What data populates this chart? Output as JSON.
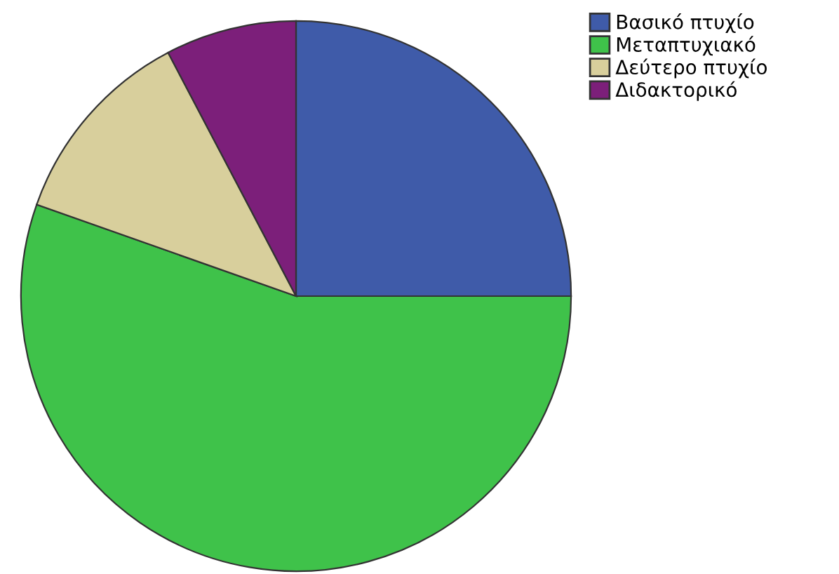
{
  "chart_data": {
    "type": "pie",
    "categories": [
      "Βασικό πτυχίο",
      "Μεταπτυχιακό",
      "Δεύτερο πτυχίο",
      "Διδακτορικό"
    ],
    "values": [
      25,
      55.4,
      11.9,
      7.7
    ],
    "colors": [
      "#3f5ba9",
      "#3fc24a",
      "#d8cf9c",
      "#7c1f7a"
    ],
    "legend": "top right"
  }
}
